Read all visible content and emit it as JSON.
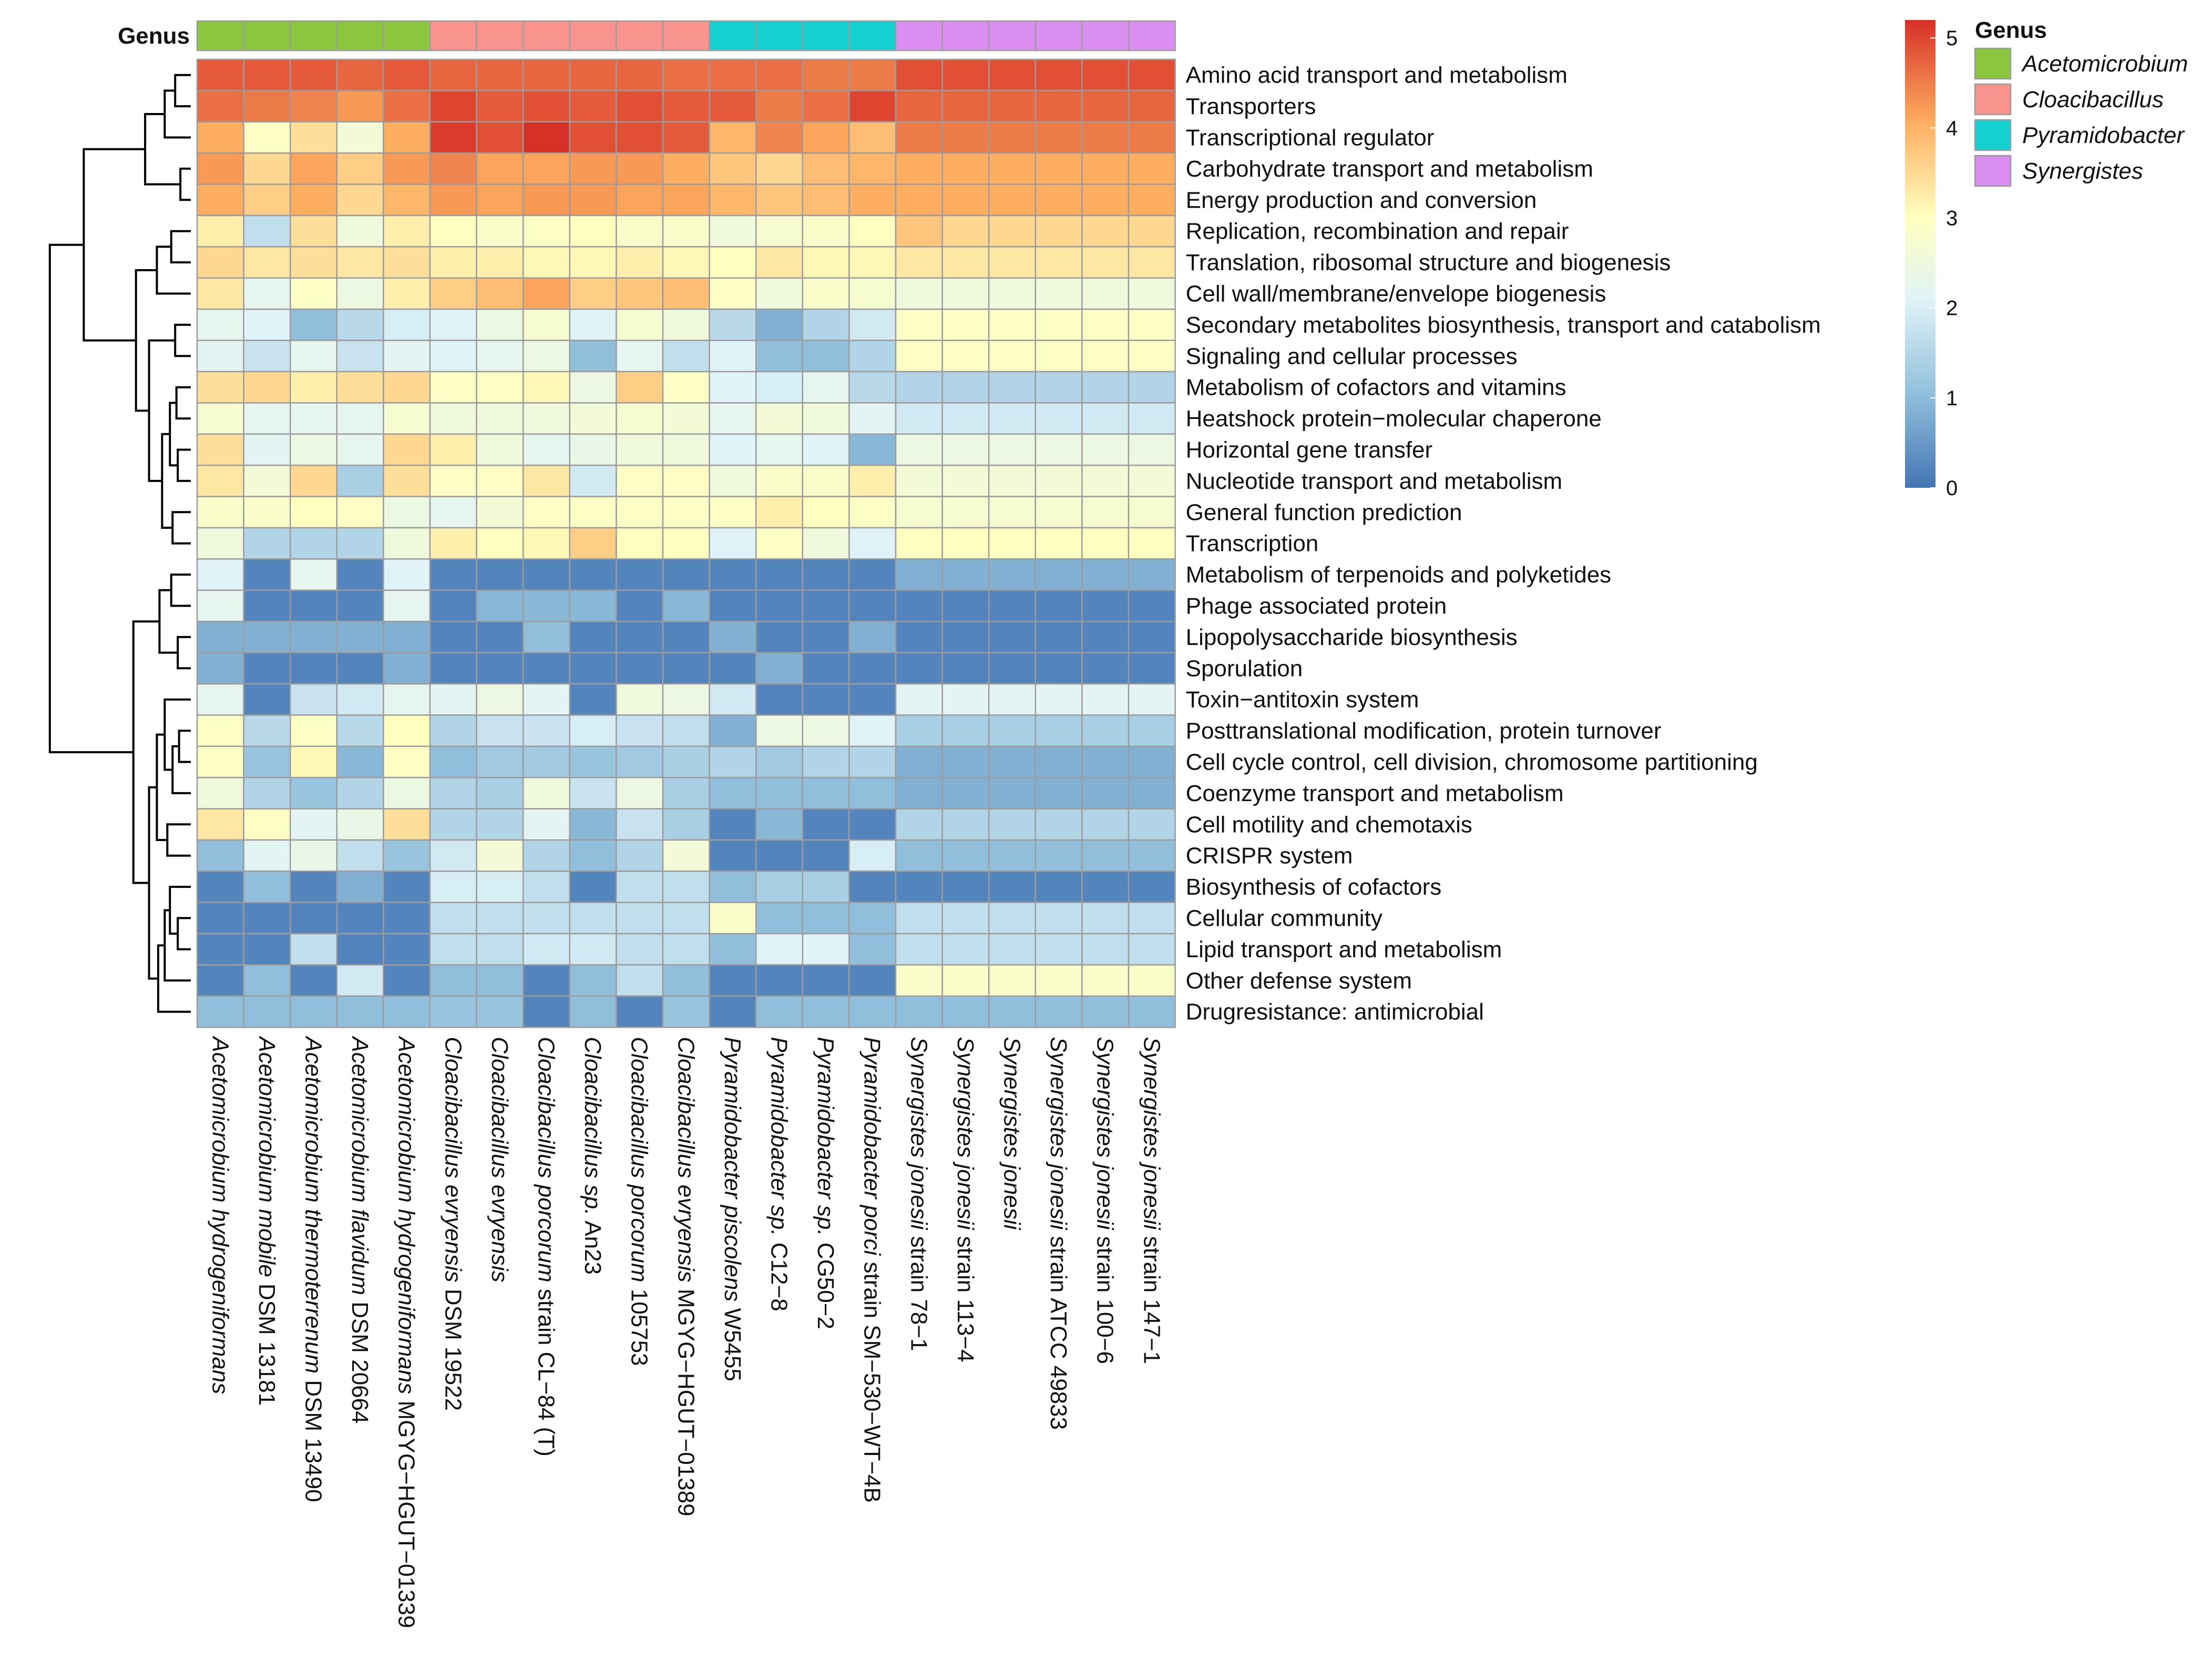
{
  "chart_data": {
    "type": "heatmap",
    "annotation_title": "Genus",
    "legend_title": "Genus",
    "colorbar": {
      "min": 0,
      "max": 5.2,
      "ticks": [
        "0",
        "1",
        "2",
        "3",
        "4",
        "5"
      ]
    },
    "genus_colors": {
      "Acetomicrobium": "#8cc63f",
      "Cloacibacillus": "#f9938d",
      "Pyramidobacter": "#15d0d0",
      "Synergistes": "#d98ef0"
    },
    "genera": [
      "Acetomicrobium",
      "Cloacibacillus",
      "Pyramidobacter",
      "Synergistes"
    ],
    "columns": [
      {
        "label": "Acetomicrobium hydrogeniformans",
        "genus": "Acetomicrobium",
        "italic": "Acetomicrobium hydrogeniformans",
        "rest": ""
      },
      {
        "label": "Acetomicrobium mobile DSM 13181",
        "genus": "Acetomicrobium",
        "italic": "Acetomicrobium mobile",
        "rest": " DSM 13181"
      },
      {
        "label": "Acetomicrobium thermoterrenum DSM 13490",
        "genus": "Acetomicrobium",
        "italic": "Acetomicrobium thermoterrenum",
        "rest": " DSM 13490"
      },
      {
        "label": "Acetomicrobium flavidum DSM 20664",
        "genus": "Acetomicrobium",
        "italic": "Acetomicrobium flavidum",
        "rest": " DSM 20664"
      },
      {
        "label": "Acetomicrobium hydrogeniformans MGYG−HGUT−01339",
        "genus": "Acetomicrobium",
        "italic": "Acetomicrobium hydrogeniformans",
        "rest": " MGYG−HGUT−01339"
      },
      {
        "label": "Cloacibacillus evryensis DSM 19522",
        "genus": "Cloacibacillus",
        "italic": "Cloacibacillus evryensis",
        "rest": " DSM 19522"
      },
      {
        "label": "Cloacibacillus evryensis",
        "genus": "Cloacibacillus",
        "italic": "Cloacibacillus evryensis",
        "rest": ""
      },
      {
        "label": "Cloacibacillus porcorum strain CL−84 (T)",
        "genus": "Cloacibacillus",
        "italic": "Cloacibacillus porcorum",
        "rest": " strain CL−84 (T)"
      },
      {
        "label": "Cloacibacillus sp. An23",
        "genus": "Cloacibacillus",
        "italic": "Cloacibacillus sp.",
        "rest": " An23"
      },
      {
        "label": "Cloacibacillus porcorum 105753",
        "genus": "Cloacibacillus",
        "italic": "Cloacibacillus porcorum",
        "rest": " 105753"
      },
      {
        "label": "Cloacibacillus evryensis MGYG−HGUT−01389",
        "genus": "Cloacibacillus",
        "italic": "Cloacibacillus evryensis",
        "rest": " MGYG−HGUT−01389"
      },
      {
        "label": "Pyramidobacter piscolens W5455",
        "genus": "Pyramidobacter",
        "italic": "Pyramidobacter piscolens",
        "rest": " W5455"
      },
      {
        "label": "Pyramidobacter sp. C12−8",
        "genus": "Pyramidobacter",
        "italic": "Pyramidobacter sp.",
        "rest": " C12−8"
      },
      {
        "label": "Pyramidobacter sp. CG50−2",
        "genus": "Pyramidobacter",
        "italic": "Pyramidobacter sp.",
        "rest": " CG50−2"
      },
      {
        "label": "Pyramidobacter porci strain SM−530−WT−4B",
        "genus": "Pyramidobacter",
        "italic": "Pyramidobacter porci",
        "rest": " strain SM−530−WT−4B"
      },
      {
        "label": "Synergistes jonesii strain 78−1",
        "genus": "Synergistes",
        "italic": "Synergistes jonesii",
        "rest": " strain 78−1"
      },
      {
        "label": "Synergistes jonesii strain 113−4",
        "genus": "Synergistes",
        "italic": "Synergistes jonesii",
        "rest": " strain 113−4"
      },
      {
        "label": "Synergistes jonesii",
        "genus": "Synergistes",
        "italic": "Synergistes jonesii",
        "rest": ""
      },
      {
        "label": "Synergistes jonesii strain ATCC 49833",
        "genus": "Synergistes",
        "italic": "Synergistes jonesii",
        "rest": " strain ATCC 49833"
      },
      {
        "label": "Synergistes jonesii strain 100−6",
        "genus": "Synergistes",
        "italic": "Synergistes jonesii",
        "rest": " strain 100−6"
      },
      {
        "label": "Synergistes jonesii strain 147−1",
        "genus": "Synergistes",
        "italic": "Synergistes jonesii",
        "rest": " strain 147−1"
      }
    ],
    "rows": [
      "Amino acid transport and metabolism",
      "Transporters",
      "Transcriptional regulator",
      "Carbohydrate transport and metabolism",
      "Energy production and conversion",
      "Replication, recombination and repair",
      "Translation, ribosomal structure and biogenesis",
      "Cell wall/membrane/envelope biogenesis",
      "Secondary metabolites biosynthesis, transport and catabolism",
      "Signaling and cellular processes",
      "Metabolism of cofactors and vitamins",
      "Heatshock protein−molecular chaperone",
      "Horizontal gene transfer",
      "Nucleotide transport and metabolism",
      "General function prediction",
      "Transcription",
      "Metabolism of terpenoids and polyketides",
      "Phage associated protein",
      "Lipopolysaccharide biosynthesis",
      "Sporulation",
      "Toxin−antitoxin system",
      "Posttranslational modification, protein turnover",
      "Cell cycle control, cell division, chromosome partitioning",
      "Coenzyme transport and metabolism",
      "Cell motility and chemotaxis",
      "CRISPR system",
      "Biosynthesis of cofactors",
      "Cellular community",
      "Lipid transport and metabolism",
      "Other defense system",
      "Drugresistance: antimicrobial"
    ],
    "values": [
      [
        4.8,
        4.8,
        4.8,
        4.7,
        4.8,
        4.7,
        4.7,
        4.7,
        4.7,
        4.7,
        4.6,
        4.6,
        4.6,
        4.5,
        4.5,
        4.9,
        4.9,
        4.9,
        4.9,
        4.9,
        4.9
      ],
      [
        4.6,
        4.5,
        4.4,
        4.2,
        4.6,
        5.0,
        4.8,
        4.9,
        4.8,
        4.9,
        4.8,
        4.8,
        4.5,
        4.6,
        5.0,
        4.7,
        4.7,
        4.7,
        4.7,
        4.7,
        4.7
      ],
      [
        4.0,
        2.9,
        3.4,
        2.6,
        4.0,
        5.1,
        4.9,
        5.2,
        4.9,
        4.9,
        4.8,
        3.9,
        4.4,
        4.1,
        3.8,
        4.5,
        4.5,
        4.5,
        4.5,
        4.5,
        4.5
      ],
      [
        4.2,
        3.5,
        4.1,
        3.6,
        4.2,
        4.4,
        4.1,
        4.1,
        4.2,
        4.2,
        4.0,
        3.7,
        3.5,
        3.8,
        3.9,
        4.0,
        4.0,
        4.0,
        4.0,
        4.0,
        4.0
      ],
      [
        4.0,
        3.6,
        4.0,
        3.5,
        3.9,
        4.2,
        4.1,
        4.2,
        4.2,
        4.1,
        4.1,
        3.9,
        3.7,
        3.8,
        4.0,
        4.0,
        4.0,
        4.0,
        4.0,
        4.0,
        4.0
      ],
      [
        3.2,
        1.6,
        3.4,
        2.5,
        3.2,
        3.0,
        2.8,
        2.9,
        3.0,
        2.8,
        2.8,
        2.5,
        2.7,
        2.8,
        3.0,
        3.7,
        3.5,
        3.5,
        3.5,
        3.5,
        3.5
      ],
      [
        3.5,
        3.3,
        3.4,
        3.3,
        3.4,
        3.2,
        3.2,
        3.1,
        3.1,
        3.2,
        3.1,
        3.0,
        3.3,
        3.1,
        3.1,
        3.3,
        3.3,
        3.3,
        3.3,
        3.3,
        3.3
      ],
      [
        3.3,
        2.2,
        2.9,
        2.4,
        3.2,
        3.6,
        3.8,
        4.1,
        3.6,
        3.7,
        3.8,
        2.9,
        2.5,
        2.8,
        2.7,
        2.5,
        2.5,
        2.5,
        2.5,
        2.5,
        2.5
      ],
      [
        2.2,
        2.0,
        1.0,
        1.5,
        1.9,
        2.0,
        2.4,
        2.7,
        2.0,
        2.7,
        2.5,
        1.5,
        0.8,
        1.4,
        1.8,
        2.9,
        2.9,
        2.9,
        2.9,
        2.9,
        2.9
      ],
      [
        2.1,
        1.7,
        2.2,
        1.7,
        2.1,
        2.0,
        2.2,
        2.4,
        1.0,
        2.2,
        1.6,
        2.0,
        1.0,
        1.0,
        1.4,
        2.9,
        2.9,
        2.9,
        2.9,
        2.9,
        2.9
      ],
      [
        3.4,
        3.5,
        3.2,
        3.4,
        3.5,
        2.9,
        2.9,
        3.1,
        2.4,
        3.6,
        2.9,
        2.0,
        1.9,
        2.2,
        1.5,
        1.4,
        1.4,
        1.4,
        1.4,
        1.4,
        1.4
      ],
      [
        2.7,
        2.2,
        2.2,
        2.2,
        2.7,
        2.5,
        2.5,
        2.5,
        2.6,
        2.7,
        2.6,
        2.2,
        2.6,
        2.5,
        2.1,
        1.8,
        1.8,
        1.8,
        1.8,
        1.8,
        1.8
      ],
      [
        3.4,
        2.1,
        2.4,
        2.2,
        3.5,
        3.2,
        2.5,
        2.2,
        2.3,
        2.5,
        2.5,
        2.0,
        2.2,
        2.0,
        0.9,
        2.4,
        2.4,
        2.4,
        2.4,
        2.4,
        2.4
      ],
      [
        3.3,
        2.6,
        3.5,
        1.3,
        3.4,
        2.9,
        2.9,
        3.3,
        1.8,
        2.9,
        2.9,
        2.5,
        2.8,
        2.8,
        3.2,
        2.6,
        2.6,
        2.6,
        2.6,
        2.6,
        2.6
      ],
      [
        2.8,
        2.8,
        3.0,
        2.9,
        2.4,
        2.2,
        2.6,
        2.9,
        2.9,
        2.9,
        2.9,
        2.9,
        3.2,
        3.0,
        2.9,
        2.7,
        2.7,
        2.7,
        2.7,
        2.7,
        2.7
      ],
      [
        2.5,
        1.4,
        1.4,
        1.4,
        2.5,
        3.2,
        3.0,
        3.1,
        3.6,
        3.0,
        3.0,
        2.0,
        2.9,
        2.5,
        2.0,
        3.0,
        3.0,
        3.0,
        3.0,
        3.0,
        3.0
      ],
      [
        2.0,
        0.2,
        2.2,
        0.2,
        2.0,
        0.2,
        0.2,
        0.2,
        0.2,
        0.2,
        0.2,
        0.2,
        0.2,
        0.2,
        0.2,
        0.8,
        0.8,
        0.8,
        0.8,
        0.8,
        0.8
      ],
      [
        2.2,
        0.2,
        0.2,
        0.2,
        2.2,
        0.2,
        0.9,
        0.9,
        0.9,
        0.2,
        0.9,
        0.2,
        0.2,
        0.2,
        0.2,
        0.2,
        0.2,
        0.2,
        0.2,
        0.2,
        0.2
      ],
      [
        0.8,
        0.8,
        0.8,
        0.8,
        0.8,
        0.2,
        0.2,
        1.0,
        0.2,
        0.2,
        0.2,
        0.8,
        0.2,
        0.2,
        0.8,
        0.2,
        0.2,
        0.2,
        0.2,
        0.2,
        0.2
      ],
      [
        0.8,
        0.2,
        0.2,
        0.2,
        0.8,
        0.2,
        0.2,
        0.2,
        0.2,
        0.2,
        0.2,
        0.2,
        0.8,
        0.2,
        0.2,
        0.2,
        0.2,
        0.2,
        0.2,
        0.2,
        0.2
      ],
      [
        2.2,
        0.2,
        1.7,
        1.8,
        2.2,
        2.1,
        2.4,
        2.1,
        0.2,
        2.5,
        2.4,
        1.8,
        0.2,
        0.2,
        0.2,
        2.1,
        2.1,
        2.1,
        2.1,
        2.1,
        2.1
      ],
      [
        2.9,
        1.5,
        2.9,
        1.5,
        3.0,
        1.4,
        1.7,
        1.7,
        1.9,
        1.7,
        1.6,
        0.8,
        2.4,
        2.4,
        2.0,
        1.3,
        1.3,
        1.3,
        1.3,
        1.3,
        1.3
      ],
      [
        2.9,
        1.1,
        3.1,
        0.9,
        2.9,
        1.0,
        1.2,
        1.2,
        1.1,
        1.2,
        1.3,
        1.4,
        1.2,
        1.4,
        1.4,
        0.8,
        0.8,
        0.8,
        0.8,
        0.8,
        0.8
      ],
      [
        2.5,
        1.4,
        1.1,
        1.4,
        2.4,
        1.4,
        1.3,
        2.5,
        1.7,
        2.4,
        1.3,
        1.0,
        1.0,
        1.0,
        1.0,
        0.8,
        0.8,
        0.8,
        0.8,
        0.8,
        0.8
      ],
      [
        3.3,
        2.9,
        2.1,
        2.3,
        3.4,
        1.4,
        1.4,
        2.1,
        0.9,
        1.7,
        1.3,
        0.2,
        0.9,
        0.2,
        0.2,
        1.4,
        1.4,
        1.4,
        1.4,
        1.4,
        1.4
      ],
      [
        1.0,
        2.1,
        2.3,
        1.6,
        1.1,
        1.8,
        2.6,
        1.4,
        1.0,
        1.4,
        2.6,
        0.2,
        0.2,
        0.2,
        1.9,
        1.0,
        1.0,
        1.0,
        1.0,
        1.0,
        1.0
      ],
      [
        0.2,
        1.0,
        0.2,
        0.8,
        0.2,
        1.9,
        1.9,
        1.6,
        0.2,
        1.6,
        1.6,
        1.0,
        1.3,
        1.3,
        0.2,
        0.2,
        0.2,
        0.2,
        0.2,
        0.2,
        0.2
      ],
      [
        0.2,
        0.2,
        0.2,
        0.2,
        0.2,
        1.6,
        1.6,
        1.6,
        1.6,
        1.6,
        1.6,
        2.8,
        1.0,
        1.0,
        1.0,
        1.6,
        1.6,
        1.6,
        1.6,
        1.6,
        1.6
      ],
      [
        0.2,
        0.2,
        1.6,
        0.2,
        0.2,
        1.6,
        1.6,
        1.8,
        1.8,
        1.6,
        1.6,
        1.0,
        2.0,
        2.0,
        1.0,
        1.6,
        1.6,
        1.6,
        1.6,
        1.6,
        1.6
      ],
      [
        0.2,
        1.0,
        0.2,
        1.8,
        0.2,
        1.0,
        1.0,
        0.2,
        1.0,
        1.6,
        1.0,
        0.2,
        0.2,
        0.2,
        0.2,
        2.8,
        2.8,
        2.8,
        2.8,
        2.8,
        2.8
      ],
      [
        1.0,
        1.0,
        1.0,
        1.0,
        1.0,
        1.1,
        1.1,
        0.2,
        1.0,
        0.2,
        1.1,
        0.2,
        1.0,
        1.0,
        1.0,
        1.0,
        1.0,
        1.0,
        1.0,
        1.0,
        1.0
      ]
    ]
  }
}
